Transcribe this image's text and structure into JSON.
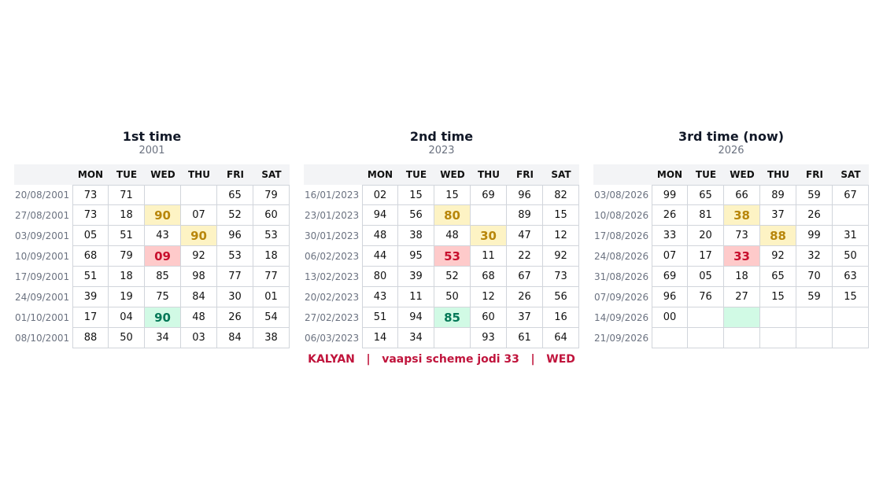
{
  "days": [
    "MON",
    "TUE",
    "WED",
    "THU",
    "FRI",
    "SAT"
  ],
  "panels": [
    {
      "title": "1st time",
      "year": "2001",
      "rows": [
        [
          "20/08/2001",
          "73",
          "71",
          null,
          null,
          "65",
          "79"
        ],
        [
          "27/08/2001",
          "73",
          "18",
          "90",
          "07",
          "52",
          "60"
        ],
        [
          "03/09/2001",
          "05",
          "51",
          "43",
          "90",
          "96",
          "53"
        ],
        [
          "10/09/2001",
          "68",
          "79",
          "09",
          "92",
          "53",
          "18"
        ],
        [
          "17/09/2001",
          "51",
          "18",
          "85",
          "98",
          "77",
          "77"
        ],
        [
          "24/09/2001",
          "39",
          "19",
          "75",
          "84",
          "30",
          "01"
        ],
        [
          "01/10/2001",
          "17",
          "04",
          "90",
          "48",
          "26",
          "54"
        ],
        [
          "08/10/2001",
          "88",
          "50",
          "34",
          "03",
          "84",
          "38"
        ]
      ]
    },
    {
      "title": "2nd time",
      "year": "2023",
      "rows": [
        [
          "16/01/2023",
          "02",
          "15",
          "15",
          "69",
          "96",
          "82"
        ],
        [
          "23/01/2023",
          "94",
          "56",
          "80",
          null,
          "89",
          "15"
        ],
        [
          "30/01/2023",
          "48",
          "38",
          "48",
          "30",
          "47",
          "12"
        ],
        [
          "06/02/2023",
          "44",
          "95",
          "53",
          "11",
          "22",
          "92"
        ],
        [
          "13/02/2023",
          "80",
          "39",
          "52",
          "68",
          "67",
          "73"
        ],
        [
          "20/02/2023",
          "43",
          "11",
          "50",
          "12",
          "26",
          "56"
        ],
        [
          "27/02/2023",
          "51",
          "94",
          "85",
          "60",
          "37",
          "16"
        ],
        [
          "06/03/2023",
          "14",
          "34",
          null,
          "93",
          "61",
          "64"
        ]
      ]
    },
    {
      "title": "3rd time  (now)",
      "year": "2026",
      "rows": [
        [
          "03/08/2026",
          "99",
          "65",
          "66",
          "89",
          "59",
          "67"
        ],
        [
          "10/08/2026",
          "26",
          "81",
          "38",
          "37",
          "26",
          null
        ],
        [
          "17/08/2026",
          "33",
          "20",
          "73",
          "88",
          "99",
          "31"
        ],
        [
          "24/08/2026",
          "07",
          "17",
          "33",
          "92",
          "32",
          "50"
        ],
        [
          "31/08/2026",
          "69",
          "05",
          "18",
          "65",
          "70",
          "63"
        ],
        [
          "07/09/2026",
          "96",
          "76",
          "27",
          "15",
          "59",
          "15"
        ],
        [
          "14/09/2026",
          "00",
          null,
          null,
          null,
          null,
          null
        ],
        [
          "21/09/2026",
          null,
          null,
          null,
          null,
          null,
          null
        ]
      ]
    }
  ],
  "footer": "KALYAN   |   vaapsi scheme jodi 33   |   WED"
}
